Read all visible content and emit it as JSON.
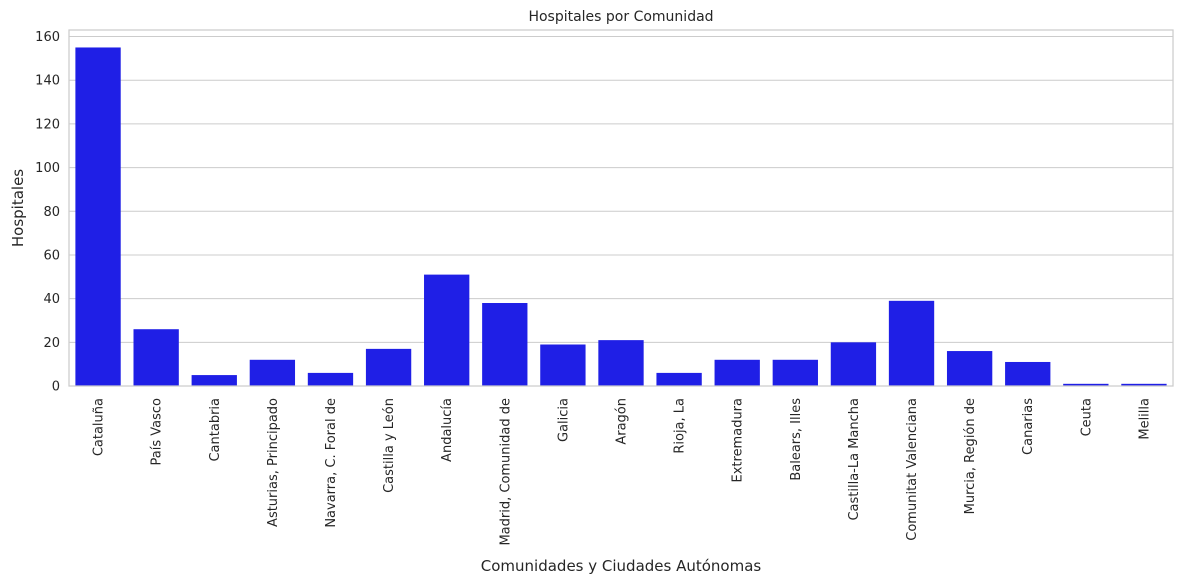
{
  "chart_data": {
    "type": "bar",
    "title": "Hospitales por Comunidad",
    "xlabel": "Comunidades y Ciudades Autónomas",
    "ylabel": "Hospitales",
    "ylim": [
      0,
      163
    ],
    "yticks": [
      0,
      20,
      40,
      60,
      80,
      100,
      120,
      140,
      160
    ],
    "grid": "horizontal",
    "bar_color": "#1f1fe6",
    "categories": [
      "Cataluña",
      "País Vasco",
      "Cantabria",
      "Asturias, Principado",
      "Navarra, C. Foral de",
      "Castilla y León",
      "Andalucía",
      "Madrid, Comunidad de",
      "Galicia",
      "Aragón",
      "Rioja, La",
      "Extremadura",
      "Balears, Illes",
      "Castilla-La Mancha",
      "Comunitat Valenciana",
      "Murcia, Región de",
      "Canarias",
      "Ceuta",
      "Melilla"
    ],
    "values": [
      155,
      26,
      5,
      12,
      6,
      17,
      51,
      38,
      19,
      21,
      6,
      12,
      12,
      20,
      39,
      16,
      11,
      1,
      1
    ]
  }
}
